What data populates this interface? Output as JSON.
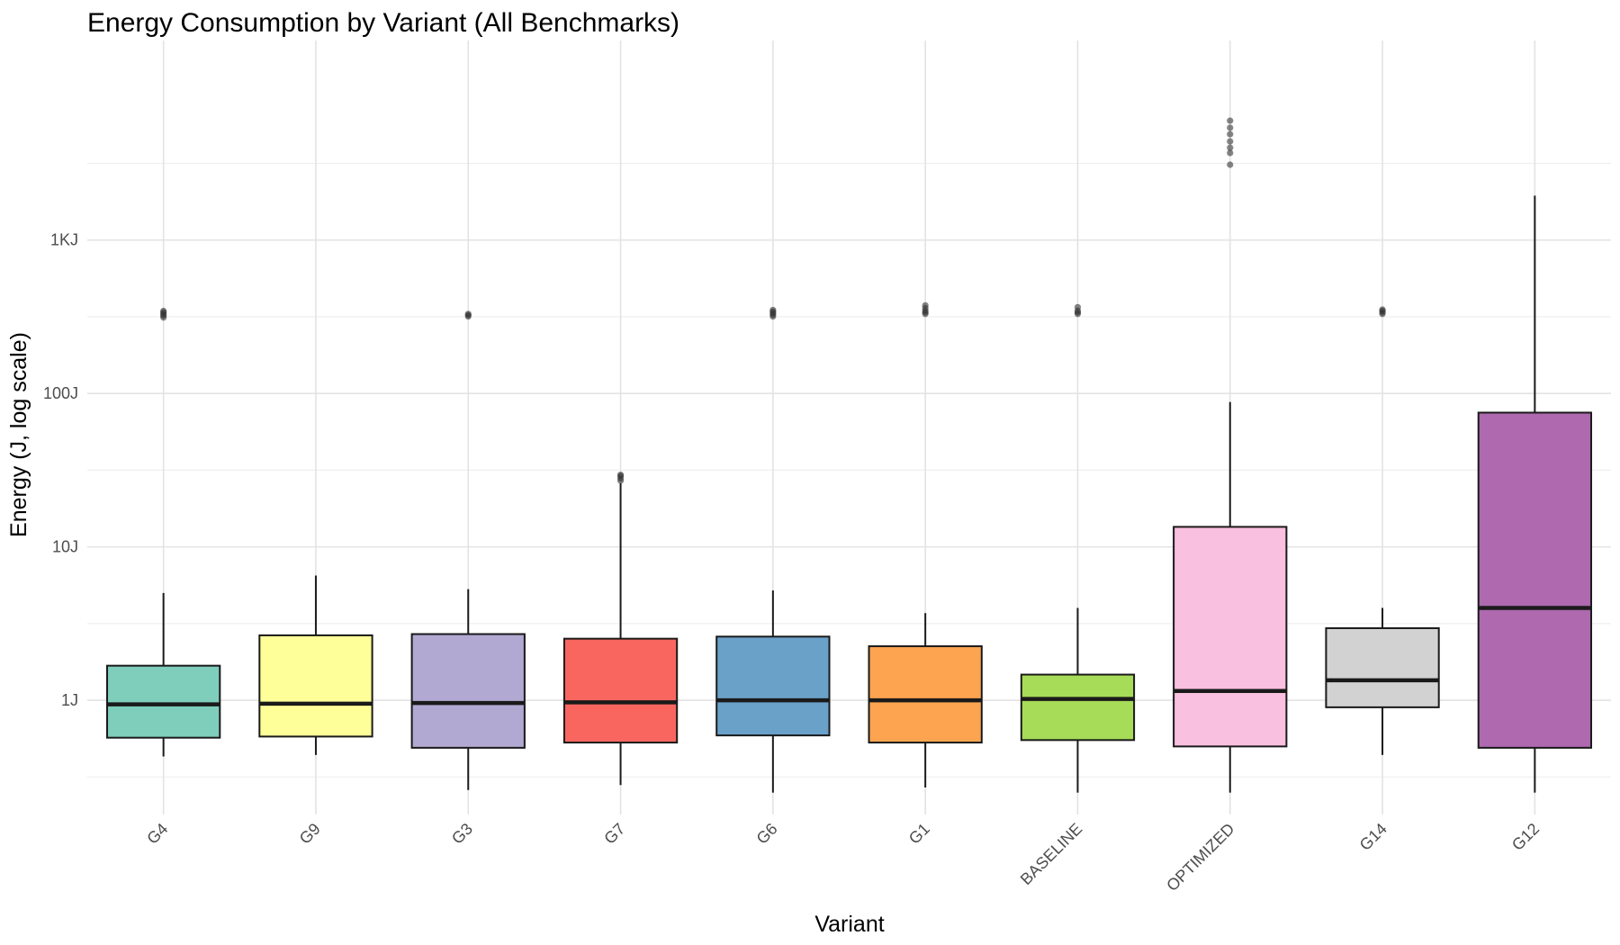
{
  "chart_data": {
    "type": "box",
    "title": "Energy Consumption by Variant (All Benchmarks)",
    "xlabel": "Variant",
    "ylabel": "Energy (J, log scale)",
    "y_scale": "log10",
    "y_range": [
      0.18,
      20000
    ],
    "y_ticks": [
      {
        "value": 1,
        "label": "1J"
      },
      {
        "value": 10,
        "label": "10J"
      },
      {
        "value": 100,
        "label": "100J"
      },
      {
        "value": 1000,
        "label": "1KJ"
      }
    ],
    "grid": true,
    "legend": "none",
    "box_outline_color": "#1a1a1a",
    "outlier_color": "#333333",
    "categories": [
      "G4",
      "G9",
      "G3",
      "G7",
      "G6",
      "G1",
      "BASELINE",
      "OPTIMIZED",
      "G14",
      "G12"
    ],
    "series": [
      {
        "category": "G4",
        "color": "#7fcdbb",
        "whisker_low": 0.43,
        "q1": 0.57,
        "median": 0.94,
        "q3": 1.68,
        "whisker_high": 5.0,
        "outliers": [
          313,
          322,
          330,
          338,
          345
        ]
      },
      {
        "category": "G9",
        "color": "#ffff99",
        "whisker_low": 0.44,
        "q1": 0.58,
        "median": 0.95,
        "q3": 2.65,
        "whisker_high": 6.5,
        "outliers": []
      },
      {
        "category": "G3",
        "color": "#b1a9d1",
        "whisker_low": 0.26,
        "q1": 0.49,
        "median": 0.96,
        "q3": 2.7,
        "whisker_high": 5.3,
        "outliers": [
          318,
          324,
          330
        ]
      },
      {
        "category": "G7",
        "color": "#f8665f",
        "whisker_low": 0.28,
        "q1": 0.53,
        "median": 0.97,
        "q3": 2.52,
        "whisker_high": 26.0,
        "outliers": [
          27.0,
          28.0,
          29.0,
          29.5
        ]
      },
      {
        "category": "G6",
        "color": "#6aa1c9",
        "whisker_low": 0.25,
        "q1": 0.59,
        "median": 1.0,
        "q3": 2.6,
        "whisker_high": 5.2,
        "outliers": [
          318,
          326,
          334,
          342,
          350
        ]
      },
      {
        "category": "G1",
        "color": "#fca44f",
        "whisker_low": 0.27,
        "q1": 0.53,
        "median": 1.0,
        "q3": 2.25,
        "whisker_high": 3.7,
        "outliers": [
          330,
          338,
          346,
          360,
          375
        ]
      },
      {
        "category": "BASELINE",
        "color": "#a6dc57",
        "whisker_low": 0.25,
        "q1": 0.55,
        "median": 1.02,
        "q3": 1.47,
        "whisker_high": 4.0,
        "outliers": [
          330,
          338,
          346,
          365
        ]
      },
      {
        "category": "OPTIMIZED",
        "color": "#f9c0df",
        "whisker_low": 0.25,
        "q1": 0.5,
        "median": 1.15,
        "q3": 13.5,
        "whisker_high": 88,
        "outliers": [
          3100,
          3700,
          4000,
          4400,
          4900,
          5400,
          6000
        ]
      },
      {
        "category": "G14",
        "color": "#d2d2d2",
        "whisker_low": 0.44,
        "q1": 0.9,
        "median": 1.35,
        "q3": 2.95,
        "whisker_high": 4.0,
        "outliers": [
          330,
          338,
          346,
          352
        ]
      },
      {
        "category": "G12",
        "color": "#ae69af",
        "whisker_low": 0.25,
        "q1": 0.49,
        "median": 4.0,
        "q3": 75,
        "whisker_high": 1950,
        "outliers": []
      }
    ]
  }
}
